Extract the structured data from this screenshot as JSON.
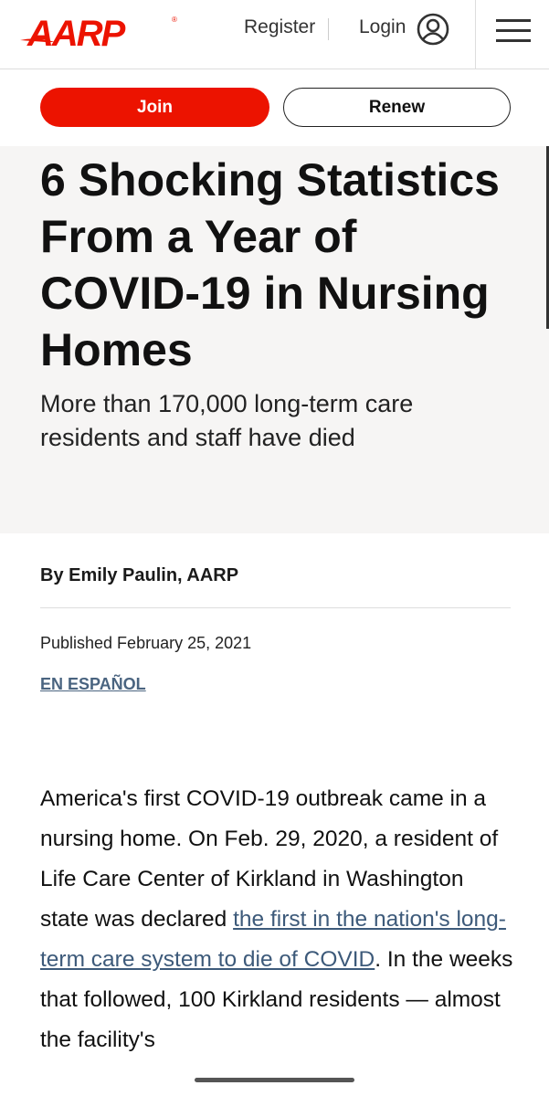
{
  "header": {
    "logo": "AARP",
    "register": "Register",
    "login": "Login"
  },
  "actions": {
    "join": "Join",
    "renew": "Renew"
  },
  "article": {
    "title": "6 Shocking Statistics From a Year of COVID-19 in Nursing Homes",
    "subtitle": "More than 170,000 long-term care residents and staff have died",
    "byline": "By Emily Paulin, AARP",
    "published": "Published February 25, 2021",
    "spanish_link": "EN ESPAÑOL",
    "body_before": "America's first COVID-19 outbreak came in a nursing home. On Feb. 29, 2020, a resident of Life Care Center of Kirkland in Washington state was declared ",
    "body_link": "the first in the nation's long-term care system to die of COVID",
    "body_after": ". In the weeks that followed, 100 Kirkland residents — almost the facility's"
  },
  "colors": {
    "brand": "#ec1300",
    "link": "#3d5a7a"
  }
}
